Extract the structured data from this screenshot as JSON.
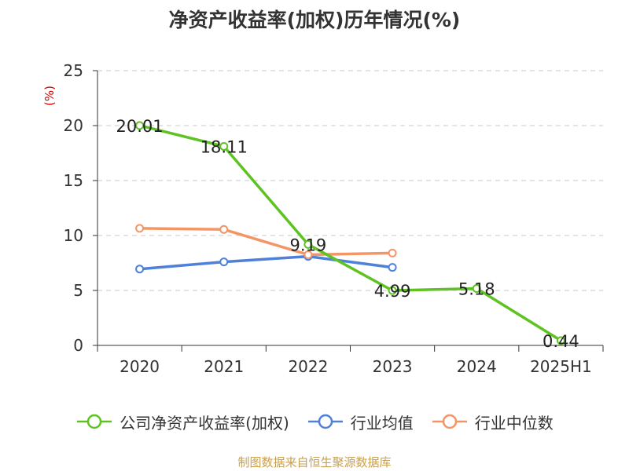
{
  "title": "净资产收益率(加权)历年情况(%)",
  "unit_label": "(%)",
  "source": "制图数据来自恒生聚源数据库",
  "colors": {
    "company": "#5ec321",
    "industry_avg": "#4f81d9",
    "industry_median": "#f49566",
    "grid": "#c8c8c8",
    "axis": "#333333"
  },
  "chart_data": {
    "type": "line",
    "title": "净资产收益率(加权)历年情况(%)",
    "xlabel": "",
    "ylabel": "(%)",
    "categories": [
      "2020",
      "2021",
      "2022",
      "2023",
      "2024",
      "2025H1"
    ],
    "ylim": [
      0,
      25
    ],
    "yticks": [
      0,
      5,
      10,
      15,
      20,
      25
    ],
    "grid": true,
    "legend_position": "bottom",
    "series": [
      {
        "name": "公司净资产收益率(加权)",
        "values": [
          20.01,
          18.11,
          9.19,
          4.99,
          5.18,
          0.44
        ],
        "data_labels": [
          "20.01",
          "18.11",
          "9.19",
          "4.99",
          "5.18",
          "0.44"
        ],
        "color": "#5ec321"
      },
      {
        "name": "行业均值",
        "values": [
          6.95,
          7.6,
          8.1,
          7.1,
          null,
          null
        ],
        "color": "#4f81d9"
      },
      {
        "name": "行业中位数",
        "values": [
          10.65,
          10.55,
          8.25,
          8.4,
          null,
          null
        ],
        "color": "#f49566"
      }
    ]
  }
}
